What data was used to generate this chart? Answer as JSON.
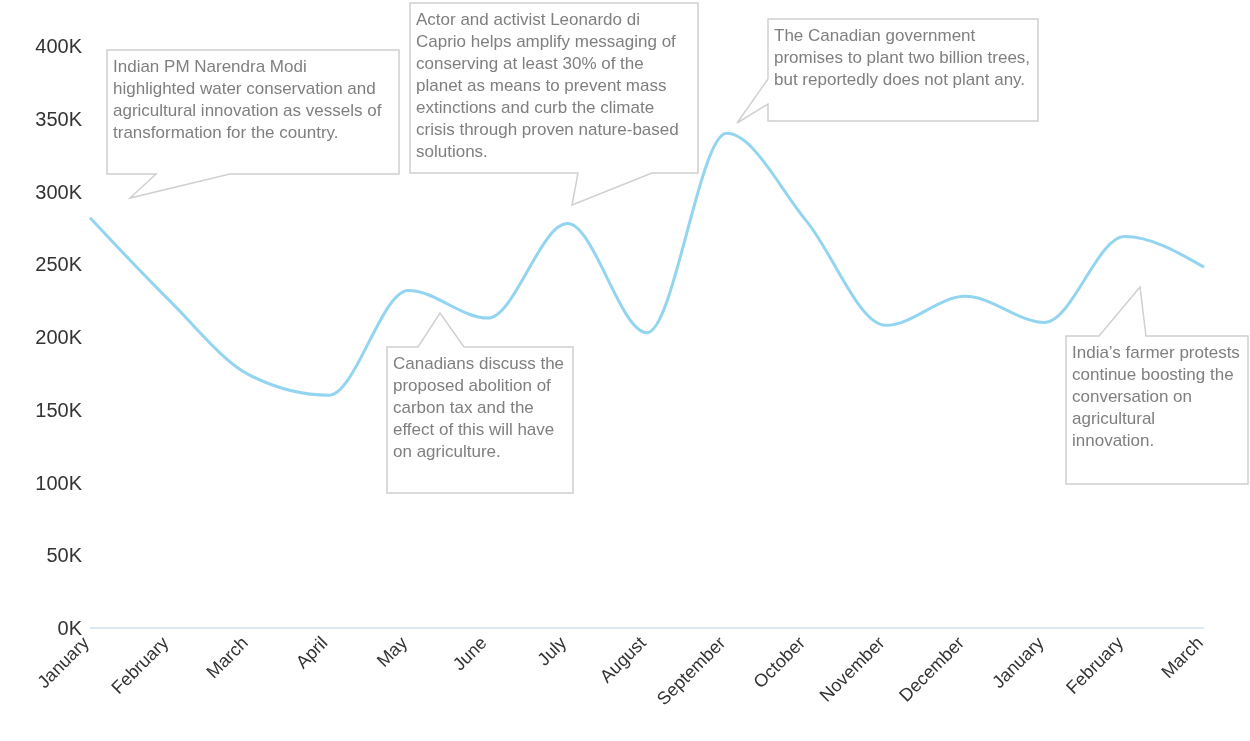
{
  "chart_data": {
    "type": "line",
    "categories": [
      "January",
      "February",
      "March",
      "April",
      "May",
      "June",
      "July",
      "August",
      "September",
      "October",
      "November",
      "December",
      "January",
      "February",
      "March"
    ],
    "series": [
      {
        "color": "#93d5f0",
        "values": [
          282000,
          225000,
          174000,
          160000,
          232000,
          213000,
          278000,
          203000,
          340000,
          280000,
          208000,
          228000,
          210000,
          269000,
          248000
        ]
      }
    ],
    "ylim": [
      0,
      400000
    ],
    "yticks": [
      {
        "value": 0,
        "label": "0K"
      },
      {
        "value": 50000,
        "label": "50K"
      },
      {
        "value": 100000,
        "label": "100K"
      },
      {
        "value": 150000,
        "label": "150K"
      },
      {
        "value": 200000,
        "label": "200K"
      },
      {
        "value": 250000,
        "label": "250K"
      },
      {
        "value": 300000,
        "label": "300K"
      },
      {
        "value": 350000,
        "label": "350K"
      },
      {
        "value": 400000,
        "label": "400K"
      }
    ],
    "grid": false,
    "legend": false,
    "annotations": [
      "Indian PM Narendra Modi highlighted water conservation and agricultural innovation as vessels of transformation for the country.",
      "Actor and activist Leonardo di Caprio helps amplify messaging of  conserving at least 30% of the planet as means to prevent mass extinctions and curb the climate crisis through proven nature-based solutions.",
      "The Canadian government promises to plant two billion trees, but reportedly does not plant any.",
      "Canadians discuss the proposed abolition of carbon tax and the effect of this will have on agriculture.",
      "India’s farmer protests continue boosting the conversation on agricultural innovation."
    ]
  }
}
